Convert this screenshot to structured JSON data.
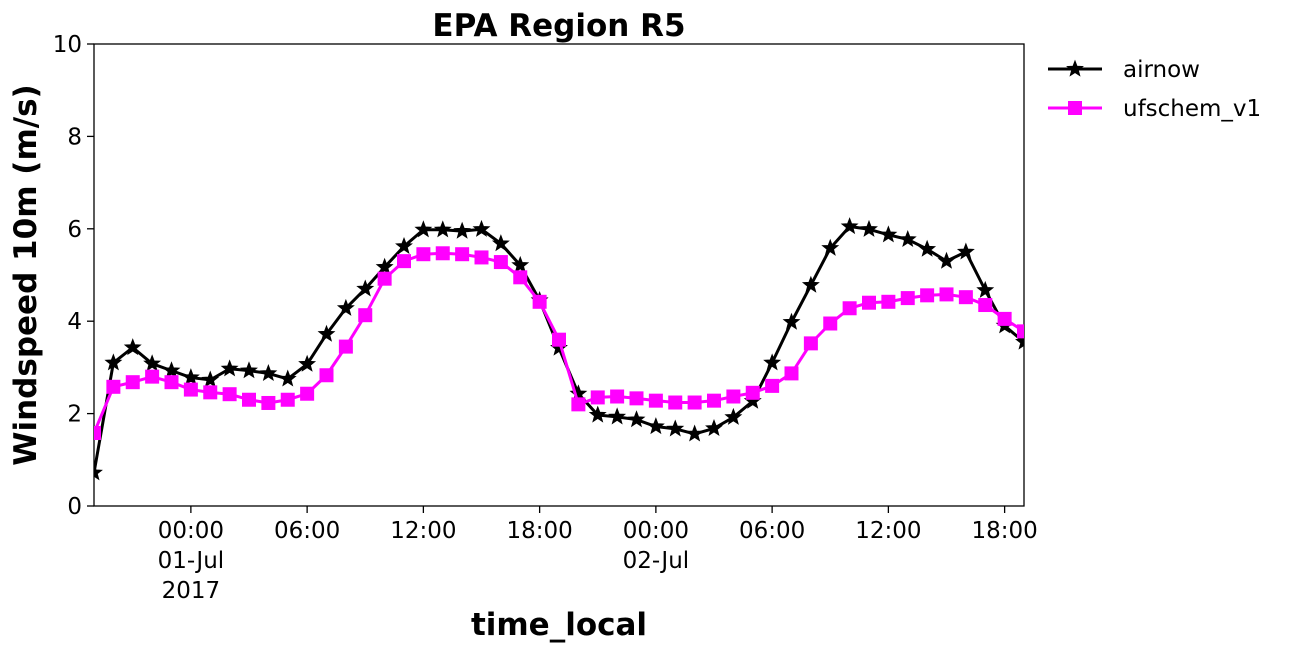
{
  "chart_data": {
    "type": "line",
    "title": "EPA Region R5",
    "xlabel": "time_local",
    "ylabel": "Windspeed 10m (m/s)",
    "ylim": [
      0,
      10
    ],
    "yticks": [
      "0",
      "2",
      "4",
      "6",
      "8",
      "10"
    ],
    "xlim": [
      "2017-06-30T19:00",
      "2017-07-02T19:00"
    ],
    "xticks": [
      {
        "time": "2017-07-01T00:00",
        "lines": [
          "00:00",
          "01-Jul",
          "2017"
        ]
      },
      {
        "time": "2017-07-01T06:00",
        "lines": [
          "06:00"
        ]
      },
      {
        "time": "2017-07-01T12:00",
        "lines": [
          "12:00"
        ]
      },
      {
        "time": "2017-07-01T18:00",
        "lines": [
          "18:00"
        ]
      },
      {
        "time": "2017-07-02T00:00",
        "lines": [
          "00:00",
          "02-Jul"
        ]
      },
      {
        "time": "2017-07-02T06:00",
        "lines": [
          "06:00"
        ]
      },
      {
        "time": "2017-07-02T12:00",
        "lines": [
          "12:00"
        ]
      },
      {
        "time": "2017-07-02T18:00",
        "lines": [
          "18:00"
        ]
      }
    ],
    "x": [
      "2017-06-30T19:00",
      "2017-06-30T20:00",
      "2017-06-30T21:00",
      "2017-06-30T22:00",
      "2017-06-30T23:00",
      "2017-07-01T00:00",
      "2017-07-01T01:00",
      "2017-07-01T02:00",
      "2017-07-01T03:00",
      "2017-07-01T04:00",
      "2017-07-01T05:00",
      "2017-07-01T06:00",
      "2017-07-01T07:00",
      "2017-07-01T08:00",
      "2017-07-01T09:00",
      "2017-07-01T10:00",
      "2017-07-01T11:00",
      "2017-07-01T12:00",
      "2017-07-01T13:00",
      "2017-07-01T14:00",
      "2017-07-01T15:00",
      "2017-07-01T16:00",
      "2017-07-01T17:00",
      "2017-07-01T18:00",
      "2017-07-01T19:00",
      "2017-07-01T20:00",
      "2017-07-01T21:00",
      "2017-07-01T22:00",
      "2017-07-01T23:00",
      "2017-07-02T00:00",
      "2017-07-02T01:00",
      "2017-07-02T02:00",
      "2017-07-02T03:00",
      "2017-07-02T04:00",
      "2017-07-02T05:00",
      "2017-07-02T06:00",
      "2017-07-02T07:00",
      "2017-07-02T08:00",
      "2017-07-02T09:00",
      "2017-07-02T10:00",
      "2017-07-02T11:00",
      "2017-07-02T12:00",
      "2017-07-02T13:00",
      "2017-07-02T14:00",
      "2017-07-02T15:00",
      "2017-07-02T16:00",
      "2017-07-02T17:00",
      "2017-07-02T18:00",
      "2017-07-02T19:00"
    ],
    "series": [
      {
        "name": "airnow",
        "color": "#000000",
        "marker": "star",
        "values": [
          0.72,
          3.1,
          3.43,
          3.08,
          2.93,
          2.78,
          2.73,
          2.97,
          2.93,
          2.87,
          2.75,
          3.07,
          3.72,
          4.28,
          4.7,
          5.17,
          5.62,
          5.98,
          5.98,
          5.95,
          5.99,
          5.68,
          5.21,
          4.45,
          3.42,
          2.43,
          1.97,
          1.93,
          1.87,
          1.72,
          1.67,
          1.56,
          1.68,
          1.92,
          2.27,
          3.1,
          3.98,
          4.78,
          5.58,
          6.05,
          5.99,
          5.87,
          5.77,
          5.56,
          5.3,
          5.5,
          4.67,
          3.9,
          3.55
        ]
      },
      {
        "name": "ufschem_v1",
        "color": "#ff00ff",
        "marker": "square",
        "values": [
          1.58,
          2.58,
          2.68,
          2.8,
          2.68,
          2.52,
          2.46,
          2.42,
          2.3,
          2.23,
          2.3,
          2.43,
          2.83,
          3.45,
          4.13,
          4.92,
          5.3,
          5.45,
          5.47,
          5.45,
          5.38,
          5.28,
          4.95,
          4.42,
          3.6,
          2.2,
          2.35,
          2.37,
          2.33,
          2.28,
          2.24,
          2.24,
          2.28,
          2.37,
          2.45,
          2.6,
          2.87,
          3.52,
          3.95,
          4.28,
          4.4,
          4.42,
          4.5,
          4.56,
          4.58,
          4.52,
          4.35,
          4.05,
          3.78
        ]
      }
    ],
    "legend": {
      "position": "outside-right-top"
    }
  }
}
